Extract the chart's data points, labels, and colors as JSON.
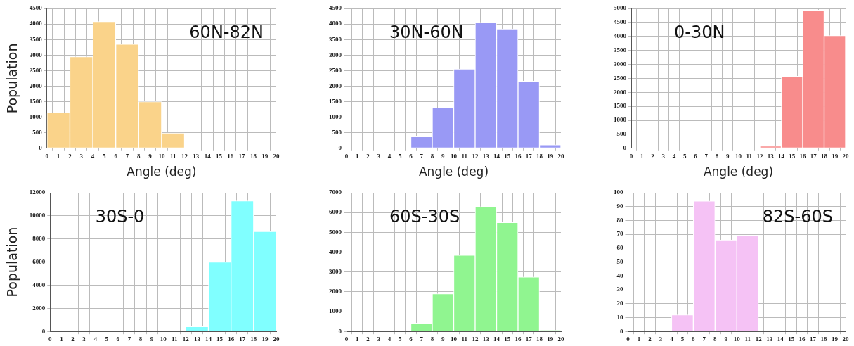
{
  "chart_data": [
    {
      "type": "histogram",
      "ylabel": "Population",
      "xlabel": "Angle (deg)",
      "annotations": [
        "60N-82N"
      ],
      "bins": [
        0,
        2,
        4,
        6,
        8,
        10,
        12,
        14,
        16,
        18,
        20
      ],
      "values": [
        1140,
        2950,
        4080,
        3350,
        1500,
        490,
        0,
        0,
        0,
        0
      ],
      "color": "#fad38a",
      "xlim": [
        0,
        20
      ],
      "xticks": [
        0,
        1,
        2,
        3,
        4,
        5,
        6,
        7,
        8,
        9,
        10,
        11,
        12,
        13,
        14,
        15,
        16,
        17,
        18,
        19,
        20
      ],
      "ylim": [
        0,
        4500
      ],
      "yticks": [
        0,
        500,
        1000,
        1500,
        2000,
        2500,
        3000,
        3500,
        4000,
        4500
      ],
      "grid": true
    },
    {
      "type": "histogram",
      "xlabel": "Angle (deg)",
      "annotations": [
        "30N-60N"
      ],
      "bins": [
        0,
        2,
        4,
        6,
        8,
        10,
        12,
        14,
        16,
        18,
        20
      ],
      "values": [
        0,
        0,
        0,
        370,
        1300,
        2550,
        4050,
        3840,
        2160,
        110
      ],
      "color": "#9999f5",
      "xlim": [
        0,
        20
      ],
      "xticks": [
        0,
        1,
        2,
        3,
        4,
        5,
        6,
        7,
        8,
        9,
        10,
        11,
        12,
        13,
        14,
        15,
        16,
        17,
        18,
        19,
        20
      ],
      "ylim": [
        0,
        4500
      ],
      "yticks": [
        0,
        500,
        1000,
        1500,
        2000,
        2500,
        3000,
        3500,
        4000,
        4500
      ],
      "grid": true
    },
    {
      "type": "histogram",
      "xlabel": "Angle (deg)",
      "annotations": [
        "0-30N"
      ],
      "bins": [
        0,
        2,
        4,
        6,
        8,
        10,
        12,
        14,
        16,
        18,
        20
      ],
      "values": [
        0,
        0,
        0,
        0,
        0,
        0,
        80,
        2580,
        4940,
        4030
      ],
      "color": "#f88c8c",
      "xlim": [
        0,
        20
      ],
      "xticks": [
        0,
        1,
        2,
        3,
        4,
        5,
        6,
        7,
        8,
        9,
        10,
        11,
        12,
        13,
        14,
        15,
        16,
        17,
        18,
        19,
        20
      ],
      "ylim": [
        0,
        5000
      ],
      "yticks": [
        0,
        500,
        1000,
        1500,
        2000,
        2500,
        3000,
        3500,
        4000,
        4500,
        5000
      ],
      "grid": true
    },
    {
      "type": "histogram",
      "ylabel": "Population",
      "annotations": [
        "30S-0"
      ],
      "bins": [
        0,
        2,
        4,
        6,
        8,
        10,
        12,
        14,
        16,
        18,
        20
      ],
      "values": [
        0,
        0,
        0,
        0,
        0,
        0,
        420,
        6000,
        11300,
        8650
      ],
      "color": "#80ffff",
      "xlim": [
        0,
        20
      ],
      "xticks": [
        0,
        1,
        2,
        3,
        4,
        5,
        6,
        7,
        8,
        9,
        10,
        11,
        12,
        13,
        14,
        15,
        16,
        17,
        18,
        19,
        20
      ],
      "ylim": [
        0,
        12000
      ],
      "yticks": [
        0,
        2000,
        4000,
        6000,
        8000,
        10000,
        12000
      ],
      "grid": true
    },
    {
      "type": "histogram",
      "annotations": [
        "60S-30S"
      ],
      "bins": [
        0,
        2,
        4,
        6,
        8,
        10,
        12,
        14,
        16,
        18,
        20
      ],
      "values": [
        0,
        0,
        0,
        390,
        1900,
        3850,
        6300,
        5500,
        2750,
        70
      ],
      "color": "#90f590",
      "xlim": [
        0,
        20
      ],
      "xticks": [
        0,
        1,
        2,
        3,
        4,
        5,
        6,
        7,
        8,
        9,
        10,
        11,
        12,
        13,
        14,
        15,
        16,
        17,
        18,
        19,
        20
      ],
      "ylim": [
        0,
        7000
      ],
      "yticks": [
        0,
        1000,
        2000,
        3000,
        4000,
        5000,
        6000,
        7000
      ],
      "grid": true
    },
    {
      "type": "histogram",
      "annotations": [
        "82S-60S"
      ],
      "bins": [
        0,
        2,
        4,
        6,
        8,
        10,
        12,
        14,
        16,
        18,
        20
      ],
      "values": [
        0,
        0,
        12,
        94,
        66,
        69,
        0,
        0,
        0,
        0
      ],
      "color": "#f5c2f5",
      "xlim": [
        0,
        20
      ],
      "xticks": [
        0,
        1,
        2,
        3,
        4,
        5,
        6,
        7,
        8,
        9,
        10,
        11,
        12,
        13,
        14,
        15,
        16,
        17,
        18,
        19,
        20
      ],
      "ylim": [
        0,
        100
      ],
      "yticks": [
        0,
        10,
        20,
        30,
        40,
        50,
        60,
        70,
        80,
        90,
        100
      ],
      "grid": true
    }
  ]
}
